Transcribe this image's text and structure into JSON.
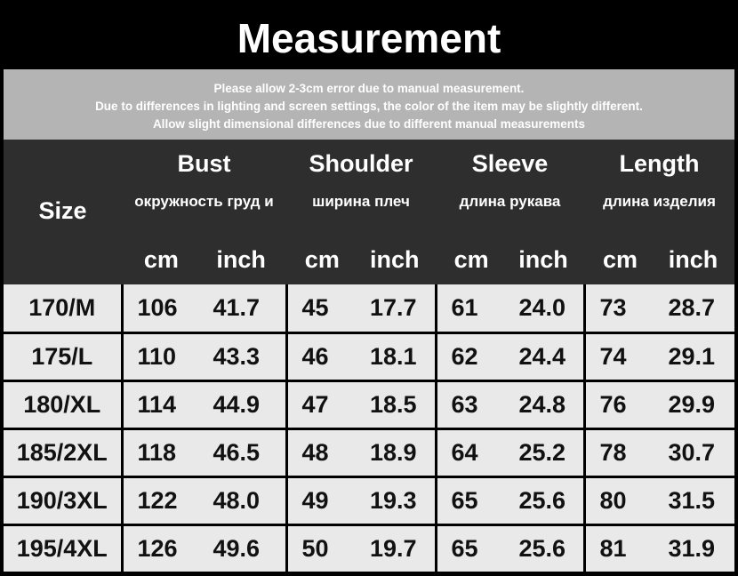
{
  "title": "Measurement",
  "notes": [
    "Please allow 2-3cm error due to manual measurement.",
    "Due to differences in lighting and screen settings, the color of the item may be slightly different.",
    "Allow slight dimensional differences due to different manual measurements"
  ],
  "header": {
    "size": "Size",
    "cm": "cm",
    "inch": "inch",
    "columns": [
      {
        "en": "Bust",
        "ru": "окружность груд и"
      },
      {
        "en": "Shoulder",
        "ru": "ширина плеч"
      },
      {
        "en": "Sleeve",
        "ru": "длина рукава"
      },
      {
        "en": "Length",
        "ru": "длина изделия"
      }
    ]
  },
  "rows": [
    [
      "170/M",
      "106",
      "41.7",
      "45",
      "17.7",
      "61",
      "24.0",
      "73",
      "28.7"
    ],
    [
      "175/L",
      "110",
      "43.3",
      "46",
      "18.1",
      "62",
      "24.4",
      "74",
      "29.1"
    ],
    [
      "180/XL",
      "114",
      "44.9",
      "47",
      "18.5",
      "63",
      "24.8",
      "76",
      "29.9"
    ],
    [
      "185/2XL",
      "118",
      "46.5",
      "48",
      "18.9",
      "64",
      "25.2",
      "78",
      "30.7"
    ],
    [
      "190/3XL",
      "122",
      "48.0",
      "49",
      "19.3",
      "65",
      "25.6",
      "80",
      "31.5"
    ],
    [
      "195/4XL",
      "126",
      "49.6",
      "50",
      "19.7",
      "65",
      "25.6",
      "81",
      "31.9"
    ]
  ]
}
